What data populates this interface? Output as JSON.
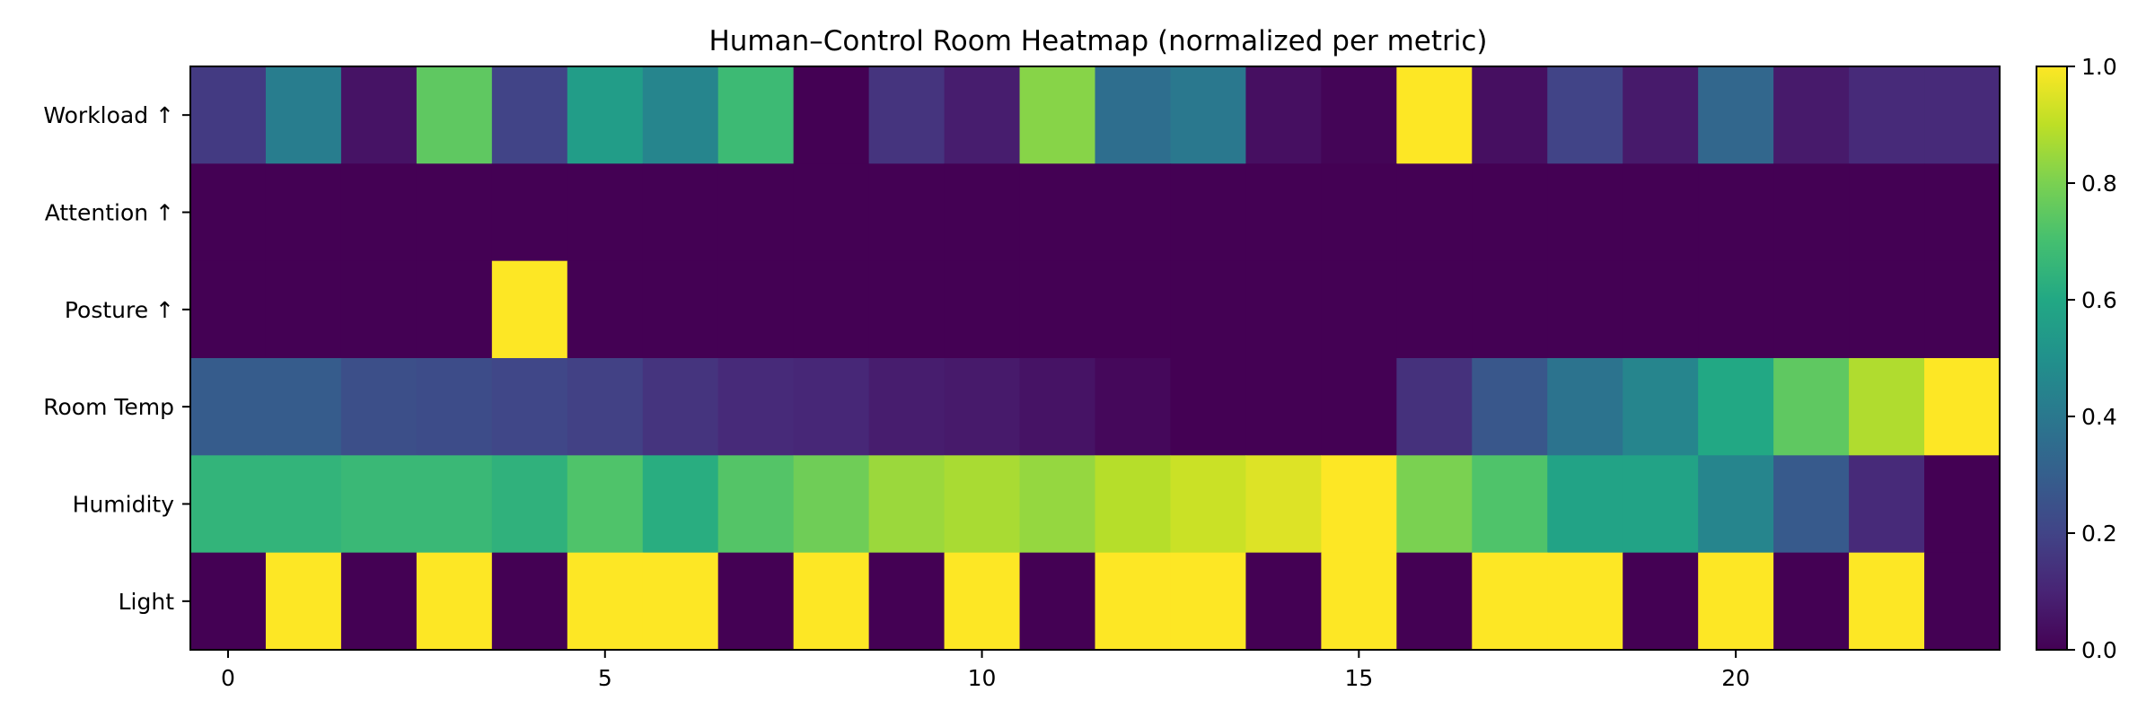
{
  "chart_data": {
    "type": "heatmap",
    "title": "Human–Control Room Heatmap (normalized per metric)",
    "xlabel": "",
    "ylabel": "",
    "x_range": [
      -0.5,
      23.5
    ],
    "x_ticks": [
      0,
      5,
      10,
      15,
      20
    ],
    "rows": [
      "Workload ↑",
      "Attention ↑",
      "Posture ↑",
      "Room Temp",
      "Humidity",
      "Light"
    ],
    "columns": [
      0,
      1,
      2,
      3,
      4,
      5,
      6,
      7,
      8,
      9,
      10,
      11,
      12,
      13,
      14,
      15,
      16,
      17,
      18,
      19,
      20,
      21,
      22,
      23
    ],
    "values": [
      [
        0.17,
        0.42,
        0.05,
        0.75,
        0.2,
        0.55,
        0.45,
        0.68,
        0.0,
        0.15,
        0.08,
        0.82,
        0.36,
        0.4,
        0.04,
        0.01,
        1.0,
        0.04,
        0.2,
        0.07,
        0.33,
        0.07,
        0.12,
        0.12
      ],
      [
        0.0,
        0.0,
        0.0,
        0.0,
        0.0,
        0.0,
        0.0,
        0.0,
        0.0,
        0.0,
        0.0,
        0.0,
        0.0,
        0.0,
        0.0,
        0.0,
        0.0,
        0.0,
        0.0,
        0.0,
        0.0,
        0.0,
        0.0,
        0.0
      ],
      [
        0.0,
        0.0,
        0.0,
        0.0,
        1.0,
        0.0,
        0.0,
        0.0,
        0.0,
        0.0,
        0.0,
        0.0,
        0.0,
        0.0,
        0.0,
        0.0,
        0.0,
        0.0,
        0.0,
        0.0,
        0.0,
        0.0,
        0.0,
        0.0
      ],
      [
        0.29,
        0.29,
        0.24,
        0.23,
        0.21,
        0.19,
        0.15,
        0.12,
        0.11,
        0.08,
        0.07,
        0.05,
        0.02,
        0.0,
        0.0,
        0.0,
        0.14,
        0.27,
        0.38,
        0.45,
        0.6,
        0.75,
        0.88,
        1.0
      ],
      [
        0.65,
        0.65,
        0.67,
        0.67,
        0.64,
        0.72,
        0.62,
        0.73,
        0.78,
        0.85,
        0.87,
        0.84,
        0.89,
        0.92,
        0.95,
        1.0,
        0.8,
        0.72,
        0.58,
        0.58,
        0.45,
        0.28,
        0.12,
        0.0
      ],
      [
        0.0,
        1.0,
        0.0,
        1.0,
        0.0,
        1.0,
        1.0,
        0.0,
        1.0,
        0.0,
        1.0,
        0.0,
        1.0,
        1.0,
        0.0,
        1.0,
        0.0,
        1.0,
        1.0,
        0.0,
        1.0,
        0.0,
        1.0,
        0.0
      ]
    ],
    "colormap": "viridis",
    "colorbar": {
      "range": [
        0.0,
        1.0
      ],
      "ticks": [
        0.0,
        0.2,
        0.4,
        0.6,
        0.8,
        1.0
      ],
      "tick_labels": [
        "0.0",
        "0.2",
        "0.4",
        "0.6",
        "0.8",
        "1.0"
      ]
    },
    "grid": false,
    "legend": "none"
  }
}
